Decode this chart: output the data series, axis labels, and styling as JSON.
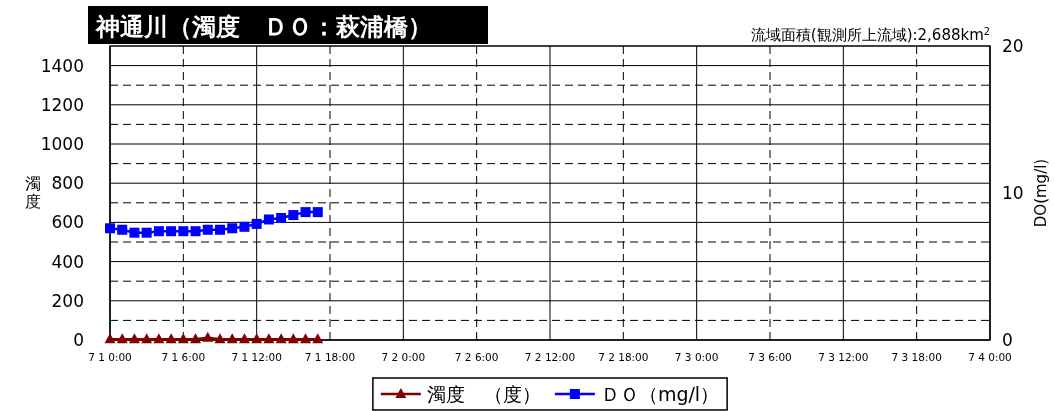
{
  "chart_data": {
    "type": "line",
    "title": "神通川（濁度　ＤＯ：萩浦橋）",
    "annotations": [
      "流域面積(観測所上流域):2,688km$^{2}$"
    ],
    "ylabel": "濁度",
    "y2label": "DO(mg/l)",
    "x": [
      "--07-01T00:00",
      "--07-01T01:00",
      "--07-01T02:00",
      "--07-01T03:00",
      "--07-01T04:00",
      "--07-01T05:00",
      "--07-01T06:00",
      "--07-01T07:00",
      "--07-01T08:00",
      "--07-01T09:00",
      "--07-01T10:00",
      "--07-01T11:00",
      "--07-01T12:00",
      "--07-01T13:00",
      "--07-01T14:00",
      "--07-01T15:00",
      "--07-01T16:00",
      "--07-01T17:00"
    ],
    "xlim": [
      "--07-01T00:00",
      "--07-04T00:00"
    ],
    "xticks": [
      {
        "value": "--07-01T00:00",
        "label": "7 1 0:00"
      },
      {
        "value": "--07-01T06:00",
        "label": "7 1 6:00"
      },
      {
        "value": "--07-01T12:00",
        "label": "7 1 12:00"
      },
      {
        "value": "--07-01T18:00",
        "label": "7 1 18:00"
      },
      {
        "value": "--07-02T00:00",
        "label": "7 2 0:00"
      },
      {
        "value": "--07-02T06:00",
        "label": "7 2 6:00"
      },
      {
        "value": "--07-02T12:00",
        "label": "7 2 12:00"
      },
      {
        "value": "--07-02T18:00",
        "label": "7 2 18:00"
      },
      {
        "value": "--07-03T00:00",
        "label": "7 3 0:00"
      },
      {
        "value": "--07-03T06:00",
        "label": "7 3 6:00"
      },
      {
        "value": "--07-03T12:00",
        "label": "7 3 12:00"
      },
      {
        "value": "--07-03T18:00",
        "label": "7 3 18:00"
      },
      {
        "value": "--07-04T00:00",
        "label": "7 4 0:00"
      }
    ],
    "ylim": [
      0,
      1500
    ],
    "yticks": [
      0,
      200,
      400,
      600,
      800,
      1000,
      1200,
      1400
    ],
    "y2lim": [
      0,
      20
    ],
    "y2ticks": [
      0,
      10,
      20
    ],
    "grid": true,
    "legend": "bottom",
    "series": [
      {
        "name": "濁度　（度）",
        "color": "#800000",
        "marker": "triangle",
        "values": [
          4,
          4,
          4,
          4,
          4,
          4,
          4,
          4,
          12,
          4,
          4,
          4,
          4,
          4,
          4,
          4,
          4,
          4
        ]
      },
      {
        "name": "ＤＯ（mg/l）",
        "color": "#0000ff",
        "marker": "square",
        "axis": "y2",
        "values": [
          7.6,
          7.5,
          7.3,
          7.3,
          7.4,
          7.4,
          7.4,
          7.4,
          7.5,
          7.5,
          7.6,
          7.7,
          7.9,
          8.2,
          8.3,
          8.5,
          8.7,
          8.7
        ]
      }
    ]
  }
}
